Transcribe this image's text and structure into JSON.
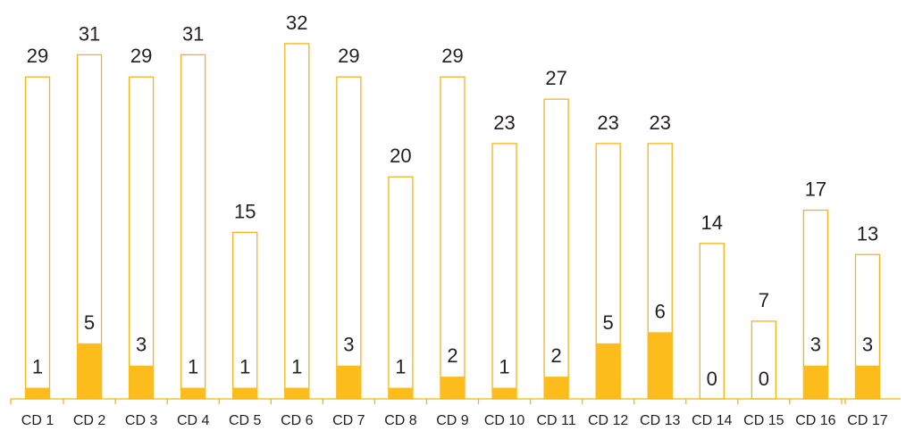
{
  "chart_data": {
    "type": "bar",
    "categories": [
      "CD 1",
      "CD 2",
      "CD 3",
      "CD 4",
      "CD 5",
      "CD 6",
      "CD 7",
      "CD 8",
      "CD 9",
      "CD 10",
      "CD 11",
      "CD 12",
      "CD 13",
      "CD 14",
      "CD 15",
      "CD 16",
      "CD 17"
    ],
    "series": [
      {
        "values": [
          29,
          31,
          29,
          31,
          15,
          32,
          29,
          20,
          29,
          23,
          27,
          23,
          23,
          14,
          7,
          17,
          13
        ]
      },
      {
        "values": [
          1,
          5,
          3,
          1,
          1,
          1,
          3,
          1,
          2,
          1,
          2,
          5,
          6,
          0,
          0,
          3,
          3
        ]
      }
    ],
    "ylim": [
      0,
      35
    ],
    "grid": false,
    "colors": {
      "accent": "#fbbc1c",
      "outline": "#f3b41b",
      "text": "#231f20"
    }
  }
}
